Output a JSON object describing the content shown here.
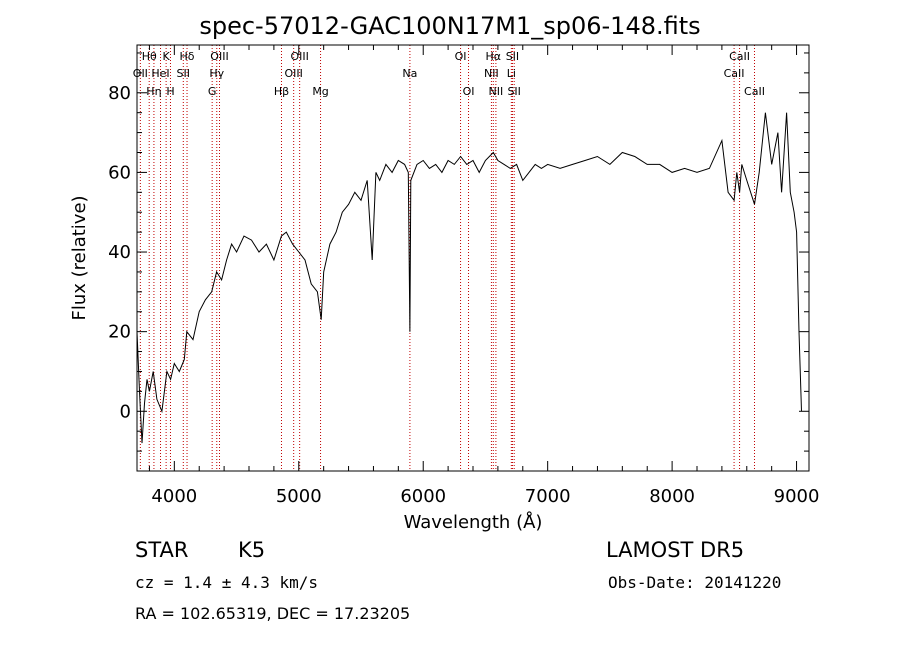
{
  "chart_data": {
    "type": "line",
    "title": "spec-57012-GAC100N17M1_sp06-148.fits",
    "xlabel": "Wavelength (Å)",
    "ylabel": "Flux (relative)",
    "xlim": [
      3700,
      9100
    ],
    "ylim": [
      -15,
      92
    ],
    "xticks": [
      4000,
      5000,
      6000,
      7000,
      8000,
      9000
    ],
    "yticks": [
      0,
      20,
      40,
      60,
      80
    ],
    "grid": false,
    "line_color": "#000000",
    "marker_line_color": "#c00000",
    "series": [
      {
        "x": [
          3700,
          3720,
          3740,
          3760,
          3780,
          3800,
          3830,
          3860,
          3900,
          3940,
          3970,
          4000,
          4040,
          4080,
          4100,
          4150,
          4200,
          4250,
          4300,
          4340,
          4380,
          4420,
          4460,
          4500,
          4560,
          4620,
          4680,
          4740,
          4800,
          4860,
          4900,
          4950,
          5000,
          5050,
          5100,
          5150,
          5180,
          5200,
          5250,
          5300,
          5350,
          5400,
          5450,
          5500,
          5550,
          5590,
          5620,
          5650,
          5700,
          5750,
          5800,
          5850,
          5880,
          5893,
          5900,
          5950,
          6000,
          6050,
          6100,
          6150,
          6200,
          6250,
          6300,
          6350,
          6400,
          6450,
          6500,
          6563,
          6600,
          6650,
          6700,
          6750,
          6800,
          6850,
          6900,
          6950,
          7000,
          7100,
          7200,
          7300,
          7400,
          7500,
          7600,
          7700,
          7800,
          7900,
          8000,
          8100,
          8200,
          8300,
          8400,
          8450,
          8498,
          8520,
          8542,
          8560,
          8600,
          8662,
          8700,
          8750,
          8800,
          8850,
          8880,
          8900,
          8920,
          8950,
          8980,
          9000,
          9020,
          9040
        ],
        "y": [
          20,
          5,
          -8,
          2,
          8,
          5,
          10,
          3,
          0,
          10,
          8,
          12,
          10,
          13,
          20,
          18,
          25,
          28,
          30,
          35,
          33,
          38,
          42,
          40,
          44,
          43,
          40,
          42,
          38,
          44,
          45,
          42,
          40,
          38,
          32,
          30,
          23,
          35,
          42,
          45,
          50,
          52,
          55,
          53,
          58,
          38,
          60,
          58,
          62,
          60,
          63,
          62,
          60,
          20,
          58,
          62,
          63,
          61,
          62,
          60,
          63,
          62,
          64,
          62,
          63,
          60,
          63,
          65,
          63,
          62,
          61,
          62,
          58,
          60,
          62,
          61,
          62,
          61,
          62,
          63,
          64,
          62,
          65,
          64,
          62,
          62,
          60,
          61,
          60,
          61,
          68,
          55,
          53,
          60,
          55,
          62,
          58,
          52,
          60,
          75,
          62,
          70,
          55,
          65,
          75,
          55,
          50,
          45,
          20,
          0
        ]
      }
    ],
    "line_marks": [
      {
        "wavelength": 3727,
        "label": "OII",
        "row": 2
      },
      {
        "wavelength": 3798,
        "label": "Hθ",
        "row": 1
      },
      {
        "wavelength": 3836,
        "label": "Hη",
        "row": 3
      },
      {
        "wavelength": 3889,
        "label": "HeI",
        "row": 2
      },
      {
        "wavelength": 3934,
        "label": "K",
        "row": 1
      },
      {
        "wavelength": 3969,
        "label": "H",
        "row": 3
      },
      {
        "wavelength": 4072,
        "label": "SII",
        "row": 2
      },
      {
        "wavelength": 4102,
        "label": "Hδ",
        "row": 1
      },
      {
        "wavelength": 4304,
        "label": "G",
        "row": 3
      },
      {
        "wavelength": 4341,
        "label": "Hγ",
        "row": 2
      },
      {
        "wavelength": 4363,
        "label": "OIII",
        "row": 1
      },
      {
        "wavelength": 4861,
        "label": "Hβ",
        "row": 3
      },
      {
        "wavelength": 4959,
        "label": "OIII",
        "row": 2
      },
      {
        "wavelength": 5007,
        "label": "OIII",
        "row": 1
      },
      {
        "wavelength": 5175,
        "label": "Mg",
        "row": 3
      },
      {
        "wavelength": 5893,
        "label": "Na",
        "row": 2
      },
      {
        "wavelength": 6300,
        "label": "OI",
        "row": 1
      },
      {
        "wavelength": 6364,
        "label": "OI",
        "row": 3
      },
      {
        "wavelength": 6548,
        "label": "NII",
        "row": 2
      },
      {
        "wavelength": 6563,
        "label": "Hα",
        "row": 1
      },
      {
        "wavelength": 6584,
        "label": "NII",
        "row": 3
      },
      {
        "wavelength": 6708,
        "label": "Li",
        "row": 2
      },
      {
        "wavelength": 6717,
        "label": "SII",
        "row": 1
      },
      {
        "wavelength": 6731,
        "label": "SII",
        "row": 3
      },
      {
        "wavelength": 8498,
        "label": "CaII",
        "row": 2
      },
      {
        "wavelength": 8542,
        "label": "CaII",
        "row": 1
      },
      {
        "wavelength": 8662,
        "label": "CaII",
        "row": 3
      }
    ]
  },
  "info": {
    "object_type": "STAR",
    "subclass": "K5",
    "survey": "LAMOST DR5",
    "cz": "cz = 1.4 ± 4.3 km/s",
    "obs_date": "Obs-Date: 20141220",
    "coords": "RA = 102.65319, DEC =  17.23205"
  }
}
